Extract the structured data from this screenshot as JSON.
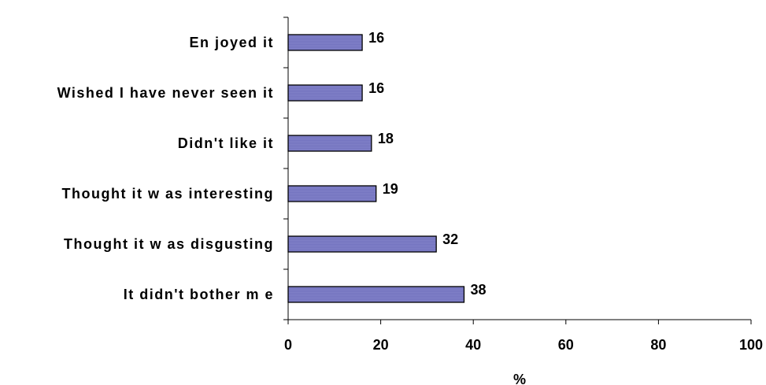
{
  "chart_data": {
    "type": "bar",
    "orientation": "horizontal",
    "categories": [
      "Enjoyed it",
      "Wished I have never seen it",
      "Didn't like it",
      "Thought it was interesting",
      "Thought it was disgusting",
      "It didn't bother me"
    ],
    "category_display": [
      "En joyed it",
      "Wished I have never seen it",
      "Didn't like it",
      "Thought it w as interesting",
      "Thought it w as disgusting",
      "It didn't bother m e"
    ],
    "values": [
      16,
      16,
      18,
      19,
      32,
      38
    ],
    "xlabel": "%",
    "ylabel": "",
    "xlim": [
      0,
      100
    ],
    "xticks": [
      "0",
      "20",
      "40",
      "60",
      "80",
      "100"
    ],
    "data_labels": [
      "16",
      "16",
      "18",
      "19",
      "32",
      "38"
    ],
    "grid": false,
    "legend": "none",
    "bar_color": "#8080c8",
    "bar_stroke": "#000000"
  }
}
